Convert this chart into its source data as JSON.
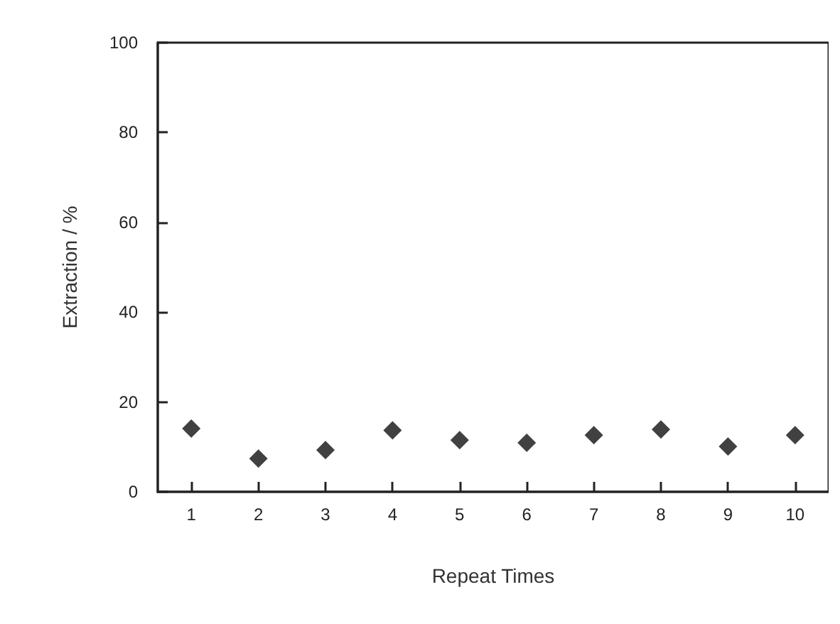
{
  "chart_data": {
    "type": "scatter",
    "xlabel": "Repeat Times",
    "ylabel": "Extraction / %",
    "x": [
      1,
      2,
      3,
      4,
      5,
      6,
      7,
      8,
      9,
      10
    ],
    "values": [
      14.1,
      7.4,
      9.3,
      13.7,
      11.5,
      10.9,
      12.6,
      13.9,
      10.1,
      12.6
    ],
    "color": "#111111",
    "marker": "diamond",
    "xlim": [
      0.5,
      10.5
    ],
    "xticks": [
      1,
      2,
      3,
      4,
      5,
      6,
      7,
      8,
      9,
      10
    ],
    "ylim": [
      0,
      100
    ],
    "yticks": [
      0,
      20,
      40,
      60,
      80,
      100
    ],
    "grid": false
  }
}
